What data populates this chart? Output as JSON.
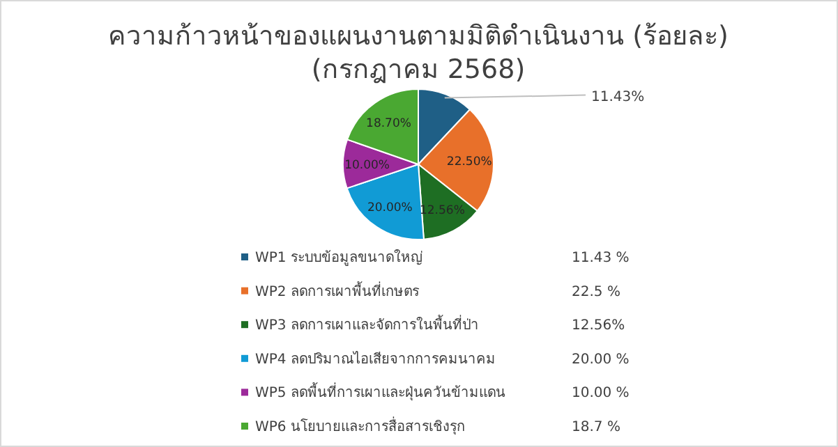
{
  "chart_data": {
    "type": "pie",
    "title": "ความก้าวหน้าของแผนงานตามมิติดำเนินงาน (ร้อยละ)",
    "subtitle": "(กรกฎาคม 2568)",
    "categories": [
      "WP1 ระบบข้อมูลขนาดใหญ่",
      "WP2 ลดการเผาพื้นที่เกษตร",
      "WP3 ลดการเผาและจัดการในพื้นที่ป่า",
      "WP4 ลดปริมาณไอเสียจากการคมนาคม",
      "WP5 ลดพื้นที่การเผาและฝุ่นควันข้ามแดน",
      "WP6 นโยบายและการสื่อสารเชิงรุก"
    ],
    "values": [
      11.43,
      22.5,
      12.56,
      20.0,
      10.0,
      18.7
    ],
    "colors": [
      "#1f5f86",
      "#e8702a",
      "#1e6e23",
      "#119bd5",
      "#9c2a9a",
      "#4aa832"
    ],
    "value_labels": [
      "11.43%",
      "22.50%",
      "12.56%",
      "20.00%",
      "10.00%",
      "18.70%"
    ],
    "annotations": [
      "11.43 %",
      "22.5 %",
      "12.56%",
      "20.00 %",
      "10.00 %",
      "18.7 %"
    ],
    "legend": "bottom"
  }
}
